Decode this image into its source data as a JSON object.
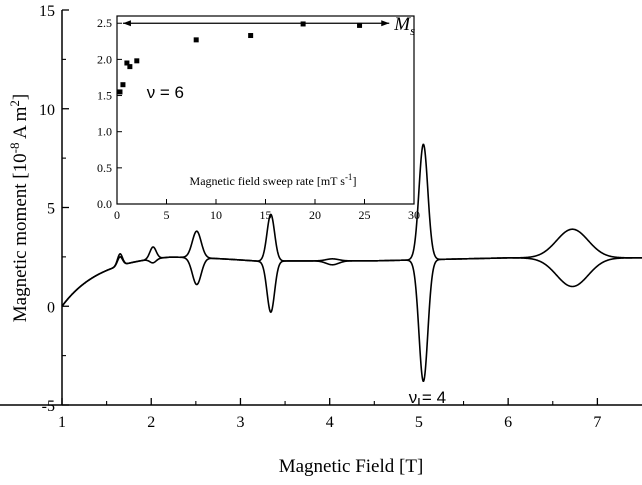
{
  "chart_data": [
    {
      "type": "line",
      "title": "",
      "xlabel": "Magnetic Field [T]",
      "ylabel": "Magnetic moment [10⁻⁸ A m²]",
      "ylabel_parts": {
        "main": "Magnetic moment [10",
        "exp1": "-8",
        "mid": " A m",
        "exp2": "2",
        "end": "]"
      },
      "xlim": [
        1,
        7.5
      ],
      "ylim": [
        -5,
        15
      ],
      "x_ticks": [
        1,
        2,
        3,
        4,
        5,
        6,
        7
      ],
      "y_ticks": [
        -5,
        0,
        5,
        10,
        15
      ],
      "grid": false,
      "background": "0.5*(sqrt(x-1)*3.1*(1-0.55*(x-1)))+2.3 approx; smooth rise from 0 at 1 T to ~2.6 near 2 T, settling near 2.2–2.6",
      "features": [
        {
          "x": 1.65,
          "upper": 2.65,
          "lower": 2.5,
          "width": 0.04
        },
        {
          "x": 2.02,
          "upper": 3.0,
          "lower": 2.2,
          "width": 0.05
        },
        {
          "x": 2.51,
          "upper": 3.8,
          "lower": 1.1,
          "width": 0.07
        },
        {
          "x": 3.34,
          "upper": 4.65,
          "lower": -0.3,
          "width": 0.06
        },
        {
          "x": 4.03,
          "upper": 2.4,
          "lower": 2.1,
          "width": 0.1
        },
        {
          "x": 5.05,
          "upper": 8.2,
          "lower": -3.8,
          "width": 0.07
        },
        {
          "x": 6.72,
          "upper": 3.9,
          "lower": 1.0,
          "width": 0.25
        }
      ],
      "annotations": [
        {
          "text": "ν = 4",
          "x": 5.05,
          "y": -4.6
        }
      ]
    },
    {
      "type": "scatter",
      "title": "",
      "xlabel": "Magnetic field sweep rate [mT s⁻¹]",
      "xlabel_parts": {
        "main": "Magnetic field sweep rate [mT s",
        "exp": "-1",
        "end": "]"
      },
      "ylabel": "",
      "xlim": [
        0,
        30
      ],
      "ylim": [
        0,
        2.6
      ],
      "x_ticks": [
        0,
        5,
        10,
        15,
        20,
        25,
        30
      ],
      "y_ticks": [
        0.0,
        0.5,
        1.0,
        1.5,
        2.0,
        2.5
      ],
      "x_tick_labels": [
        "0",
        "5",
        "10",
        "15",
        "20",
        "25",
        "30"
      ],
      "y_tick_labels": [
        "0.0",
        "0.5",
        "1.0",
        "1.5",
        "2.0",
        "2.5"
      ],
      "points": [
        {
          "x": 0.3,
          "y": 1.55
        },
        {
          "x": 0.6,
          "y": 1.65
        },
        {
          "x": 1.0,
          "y": 1.95
        },
        {
          "x": 1.3,
          "y": 1.9
        },
        {
          "x": 2.0,
          "y": 1.98
        },
        {
          "x": 8.0,
          "y": 2.27
        },
        {
          "x": 13.5,
          "y": 2.33
        },
        {
          "x": 18.8,
          "y": 2.49
        },
        {
          "x": 24.5,
          "y": 2.47
        }
      ],
      "reference_line": {
        "y": 2.5,
        "x_from": 0.6,
        "x_to": 27.5,
        "label": "M",
        "label_sub": "s"
      },
      "annotations": [
        {
          "text": "ν = 6",
          "x": 3.0,
          "y": 1.55
        }
      ]
    }
  ]
}
